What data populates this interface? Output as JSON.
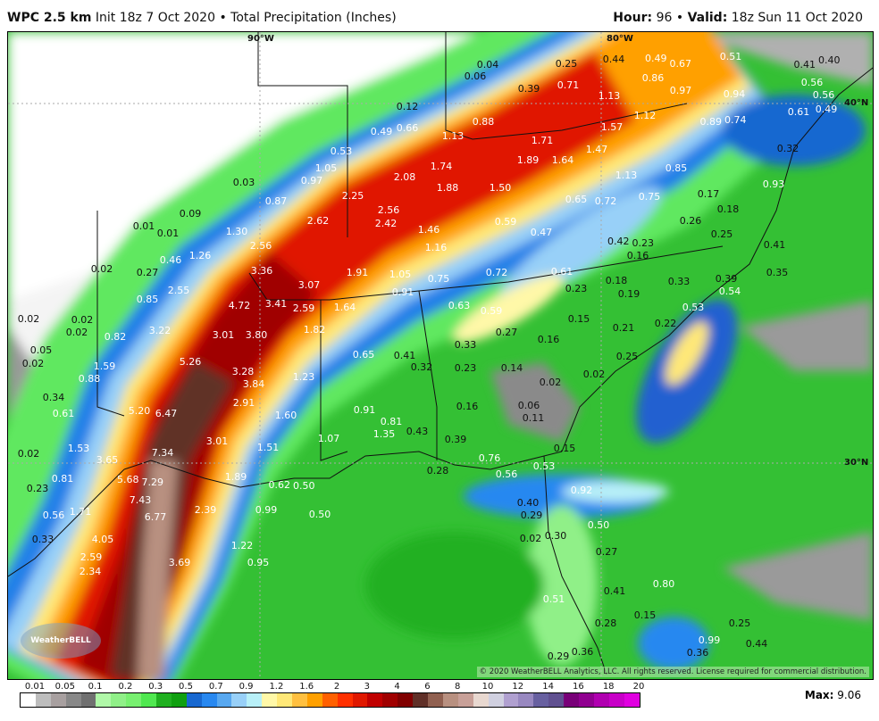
{
  "header": {
    "model": "WPC 2.5 km",
    "init": "Init 18z 7 Oct 2020",
    "sep": "•",
    "product": "Total Precipitation (Inches)",
    "hour_label": "Hour:",
    "hour": "96",
    "valid_label": "Valid:",
    "valid": "18z Sun 11 Oct 2020"
  },
  "graticule": {
    "lon90": "90°W",
    "lon80": "80°W",
    "lat40": "40°N",
    "lat30": "30°N"
  },
  "copyright": "© 2020 WeatherBELL Analytics, LLC. All rights reserved. License required for commercial distribution.",
  "logo": "WeatherBELL",
  "legend": {
    "ticks": [
      "0.01",
      "0.05",
      "0.1",
      "0.2",
      "0.3",
      "0.5",
      "0.7",
      "0.9",
      "1.2",
      "1.6",
      "2",
      "3",
      "4",
      "6",
      "8",
      "10",
      "12",
      "14",
      "16",
      "18",
      "20"
    ],
    "colors": [
      "#ffffff",
      "#bdbdbd",
      "#a8a0a0",
      "#888888",
      "#707070",
      "#b0f8a8",
      "#90f088",
      "#78f070",
      "#50e850",
      "#20b020",
      "#10a010",
      "#1868d0",
      "#2888f0",
      "#58a8f0",
      "#98d0f8",
      "#b8f0f8",
      "#fff8a8",
      "#ffe878",
      "#ffc040",
      "#ffa000",
      "#ff6000",
      "#ff3000",
      "#e01800",
      "#c00000",
      "#a00000",
      "#800000",
      "#603028",
      "#906050",
      "#b89080",
      "#c8a098",
      "#e8d8d0",
      "#d0d0e0",
      "#b0a0d0",
      "#9888c0",
      "#6860a0",
      "#605090",
      "#780078",
      "#900090",
      "#b000b0",
      "#c800c8",
      "#e000e0"
    ]
  },
  "max_label": "Max:",
  "max_value": "9.06",
  "values": [
    "0.04",
    "0.25",
    "0.44",
    "0.49",
    "0.67",
    "0.51",
    "0.41",
    "0.40",
    "0.06",
    "0.39",
    "0.71",
    "0.86",
    "0.97",
    "0.94",
    "0.56",
    "0.56",
    "1.13",
    "0.12",
    "0.88",
    "1.12",
    "1.57",
    "0.89",
    "0.74",
    "0.61",
    "0.49",
    "0.49",
    "0.66",
    "1.13",
    "1.71",
    "0.53",
    "1.47",
    "1.89",
    "1.64",
    "1.74",
    "1.05",
    "0.97",
    "0.85",
    "0.32",
    "1.13",
    "0.03",
    "2.08",
    "1.88",
    "1.50",
    "0.87",
    "2.25",
    "0.65",
    "0.72",
    "0.75",
    "0.17",
    "0.93",
    "0.18",
    "0.09",
    "2.56",
    "2.62",
    "2.42",
    "0.59",
    "0.26",
    "0.01",
    "0.01",
    "1.30",
    "1.46",
    "0.47",
    "0.25",
    "2.56",
    "1.16",
    "0.42",
    "0.23",
    "0.41",
    "1.26",
    "0.46",
    "0.16",
    "0.02",
    "0.27",
    "3.36",
    "1.91",
    "1.05",
    "0.75",
    "0.72",
    "0.61",
    "0.18",
    "0.33",
    "0.39",
    "0.35",
    "0.54",
    "2.55",
    "3.07",
    "0.91",
    "0.19",
    "0.23",
    "0.85",
    "4.72",
    "3.41",
    "2.59",
    "1.64",
    "0.63",
    "0.59",
    "0.53",
    "0.02",
    "0.02",
    "0.15",
    "0.21",
    "0.22",
    "0.02",
    "3.22",
    "3.01",
    "3.80",
    "1.82",
    "0.27",
    "0.82",
    "0.16",
    "0.05",
    "0.33",
    "0.65",
    "0.41",
    "0.25",
    "0.02",
    "1.59",
    "5.26",
    "0.32",
    "0.23",
    "0.14",
    "0.88",
    "3.28",
    "3.84",
    "1.23",
    "0.02",
    "0.02",
    "0.34",
    "2.91",
    "0.16",
    "0.06",
    "0.11",
    "5.20",
    "6.47",
    "0.61",
    "1.60",
    "0.91",
    "0.81",
    "1.35",
    "0.43",
    "3.01",
    "1.53",
    "0.39",
    "0.15",
    "7.34",
    "1.51",
    "1.07",
    "0.02",
    "3.65",
    "0.76",
    "0.53",
    "0.81",
    "0.28",
    "0.56",
    "5.68",
    "7.29",
    "1.89",
    "0.50",
    "0.62",
    "0.23",
    "0.92",
    "7.43",
    "0.40",
    "1.71",
    "6.77",
    "2.39",
    "0.99",
    "0.50",
    "0.29",
    "0.50",
    "0.56",
    "0.30",
    "0.02",
    "4.05",
    "0.33",
    "1.22",
    "0.27",
    "2.59",
    "3.69",
    "0.95",
    "2.34",
    "0.41",
    "0.80",
    "0.51",
    "0.15",
    "0.28",
    "0.25",
    "0.99",
    "0.44",
    "0.36",
    "0.36",
    "0.29"
  ]
}
